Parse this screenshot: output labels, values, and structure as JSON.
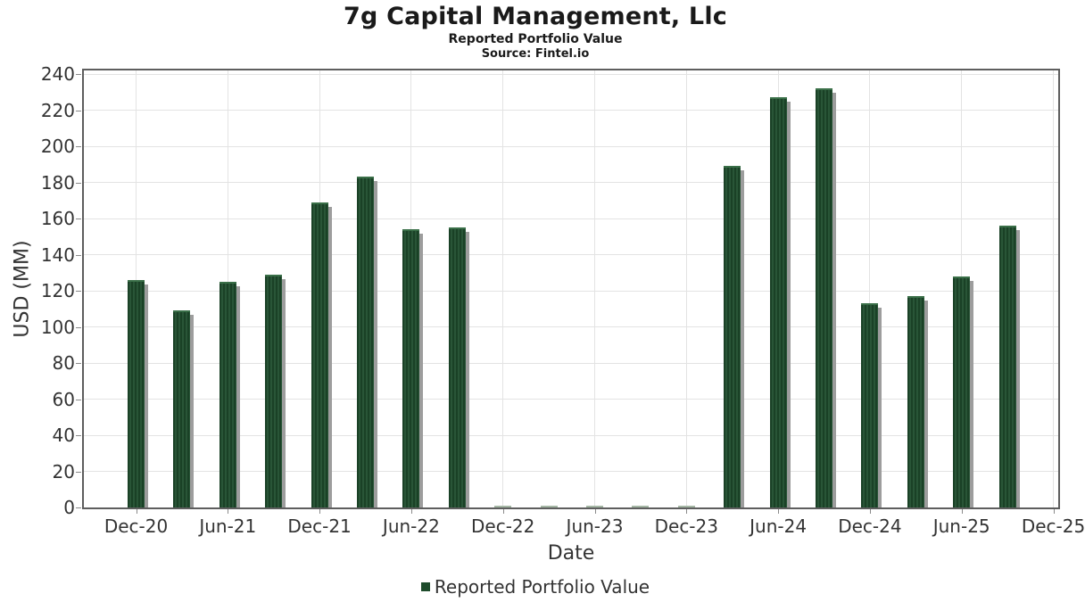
{
  "chart_data": {
    "type": "bar",
    "title": "7g Capital Management, Llc",
    "subtitle": "Reported Portfolio Value",
    "source": "Source: Fintel.io",
    "series_name": "Reported Portfolio Value",
    "xlabel": "Date",
    "ylabel": "USD (MM)",
    "categories": [
      "Dec-20",
      "Mar-21",
      "Jun-21",
      "Sep-21",
      "Dec-21",
      "Mar-22",
      "Jun-22",
      "Sep-22",
      "Dec-22",
      "Mar-23",
      "Jun-23",
      "Sep-23",
      "Dec-23",
      "Mar-24",
      "Jun-24",
      "Sep-24",
      "Dec-24",
      "Mar-25",
      "Jun-25",
      "Sep-25"
    ],
    "values": [
      126,
      109,
      125,
      129,
      169,
      183,
      154,
      155,
      1,
      1,
      1,
      1,
      1,
      189,
      227,
      232,
      113,
      117,
      128,
      156
    ],
    "x_axis_tick_labels": [
      "Dec-20",
      "Jun-21",
      "Dec-21",
      "Jun-22",
      "Dec-22",
      "Jun-23",
      "Dec-23",
      "Jun-24",
      "Dec-24",
      "Jun-25",
      "Dec-25"
    ],
    "yticks": [
      0,
      20,
      40,
      60,
      80,
      100,
      120,
      140,
      160,
      180,
      200,
      220,
      240
    ],
    "ylim": [
      0,
      240
    ],
    "grid": true,
    "legend_position": "bottom",
    "bar_color": "#1e4c2c",
    "small_bar_color": "#a5b7a5",
    "gridline_color": "#e3e3e3"
  }
}
